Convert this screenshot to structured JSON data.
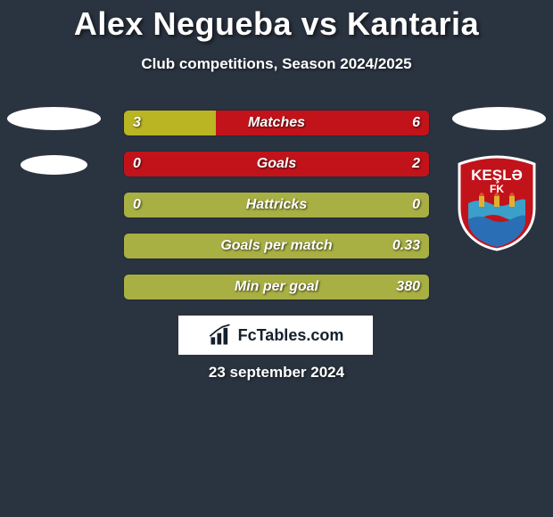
{
  "header": {
    "title": "Alex Negueba vs Kantaria",
    "subtitle": "Club competitions, Season 2024/2025"
  },
  "colors": {
    "background": "#2a3340",
    "player_a_bar": "#b9b523",
    "player_b_bar": "#c2131b",
    "neutral_bar": "#a8af43",
    "watermark_bg": "#ffffff",
    "watermark_text": "#14202b",
    "crest_red": "#c2131b",
    "crest_blue": "#2a6fb5",
    "crest_wave": "#3aa0c9"
  },
  "fonts": {
    "title_size": 36,
    "subtitle_size": 17,
    "stat_label_size": 16,
    "stat_value_size": 16,
    "date_size": 17
  },
  "stats": [
    {
      "label": "Matches",
      "a": "3",
      "b": "6",
      "a_pct": 30,
      "b_pct": 70
    },
    {
      "label": "Goals",
      "a": "0",
      "b": "2",
      "a_pct": 0,
      "b_pct": 100
    },
    {
      "label": "Hattricks",
      "a": "0",
      "b": "0",
      "a_pct": 100,
      "b_pct": 0,
      "neutral": true
    },
    {
      "label": "Goals per match",
      "a": "",
      "b": "0.33",
      "a_pct": 0,
      "b_pct": 100,
      "neutral": true
    },
    {
      "label": "Min per goal",
      "a": "",
      "b": "380",
      "a_pct": 0,
      "b_pct": 100,
      "neutral": true
    }
  ],
  "watermark": {
    "text": "FcTables.com",
    "icon": "bar-chart-icon"
  },
  "date_text": "23 september 2024",
  "crest": {
    "text": "KEŞLƏ",
    "subtext": "FK"
  }
}
